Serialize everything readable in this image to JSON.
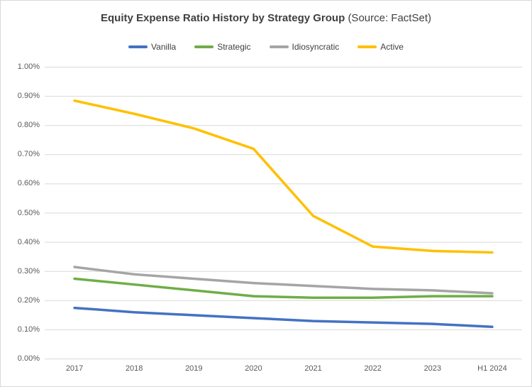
{
  "title": {
    "main": "Equity Expense Ratio History by Strategy Group",
    "source": "(Source: FactSet)"
  },
  "chart_data": {
    "type": "line",
    "title": "Equity Expense Ratio History by Strategy Group (Source: FactSet)",
    "categories": [
      "2017",
      "2018",
      "2019",
      "2020",
      "2021",
      "2022",
      "2023",
      "H1 2024"
    ],
    "series": [
      {
        "name": "Vanilla",
        "color": "#4472C4",
        "values": [
          0.175,
          0.16,
          0.15,
          0.14,
          0.13,
          0.125,
          0.12,
          0.11
        ]
      },
      {
        "name": "Strategic",
        "color": "#70AD47",
        "values": [
          0.275,
          0.255,
          0.235,
          0.215,
          0.21,
          0.21,
          0.215,
          0.215
        ]
      },
      {
        "name": "Idiosyncratic",
        "color": "#A5A5A5",
        "values": [
          0.315,
          0.29,
          0.275,
          0.26,
          0.25,
          0.24,
          0.235,
          0.225
        ]
      },
      {
        "name": "Active",
        "color": "#FFC000",
        "values": [
          0.885,
          0.84,
          0.79,
          0.72,
          0.49,
          0.385,
          0.37,
          0.365
        ]
      }
    ],
    "xlabel": "",
    "ylabel": "",
    "y_ticks": [
      "0.00%",
      "0.10%",
      "0.20%",
      "0.30%",
      "0.40%",
      "0.50%",
      "0.60%",
      "0.70%",
      "0.80%",
      "0.90%",
      "1.00%"
    ],
    "ylim": [
      0,
      1.0
    ],
    "grid": true,
    "legend_position": "top",
    "colors": {
      "grid": "#D9D9D9",
      "axis_text": "#595959",
      "title_text": "#404040",
      "border": "#D9D9D9",
      "background": "#FFFFFF"
    }
  }
}
